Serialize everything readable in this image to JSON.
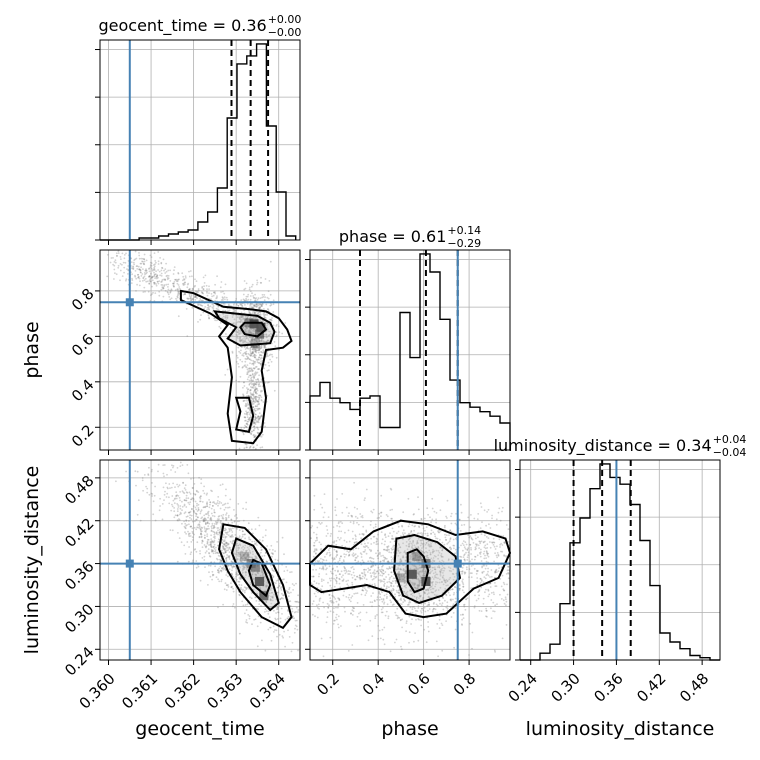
{
  "chart_data": {
    "type": "corner",
    "parameters": [
      "geocent_time",
      "phase",
      "luminosity_distance"
    ],
    "truth": {
      "geocent_time": 0.3605,
      "phase": 0.75,
      "luminosity_distance": 0.36
    },
    "colors": {
      "truth": "#4682b4",
      "hist": "#000000",
      "scatter": "#808080",
      "grid": "#b0b0b0"
    },
    "titles": [
      {
        "param": "geocent_time",
        "text": "geocent_time = 0.36",
        "plus": "+0.00",
        "minus": "−0.00"
      },
      {
        "param": "phase",
        "text": "phase = 0.61",
        "plus": "+0.14",
        "minus": "−0.29"
      },
      {
        "param": "luminosity_distance",
        "text": "luminosity_distance = 0.34",
        "plus": "+0.04",
        "minus": "−0.04"
      }
    ],
    "axes": {
      "geocent_time": {
        "range": [
          0.3598,
          0.3645
        ],
        "ticks": [
          0.36,
          0.361,
          0.362,
          0.363,
          0.364
        ],
        "tick_labels": [
          "0.360",
          "0.361",
          "0.362",
          "0.363",
          "0.364"
        ]
      },
      "phase": {
        "range": [
          0.1,
          0.98
        ],
        "ticks": [
          0.2,
          0.4,
          0.6,
          0.8
        ],
        "tick_labels": [
          "0.2",
          "0.4",
          "0.6",
          "0.8"
        ]
      },
      "luminosity_distance": {
        "range": [
          0.225,
          0.505
        ],
        "ticks": [
          0.24,
          0.3,
          0.36,
          0.42,
          0.48
        ],
        "tick_labels": [
          "0.24",
          "0.30",
          "0.36",
          "0.42",
          "0.48"
        ]
      }
    },
    "xlabels": [
      "geocent_time",
      "phase",
      "luminosity_distance"
    ],
    "ylabels": [
      "phase",
      "luminosity_distance"
    ],
    "quantiles": {
      "geocent_time": [
        0.36289,
        0.36334,
        0.36375
      ],
      "phase": [
        0.32,
        0.61,
        0.75
      ],
      "luminosity_distance": [
        0.3,
        0.34,
        0.38
      ]
    },
    "histograms": {
      "geocent_time": {
        "bin_edges": [
          0.3598,
          0.36003,
          0.36026,
          0.36049,
          0.36072,
          0.36095,
          0.36118,
          0.36141,
          0.36164,
          0.36187,
          0.3621,
          0.36233,
          0.36256,
          0.36279,
          0.36302,
          0.36325,
          0.36348,
          0.36371,
          0.36394,
          0.36417,
          0.3644
        ],
        "counts": [
          0,
          0,
          0,
          0,
          1,
          1,
          2,
          3,
          4,
          5,
          9,
          14,
          26,
          61,
          88,
          92,
          98,
          57,
          24,
          2
        ]
      },
      "phase": {
        "bin_edges": [
          0.1,
          0.144,
          0.188,
          0.232,
          0.276,
          0.32,
          0.364,
          0.408,
          0.452,
          0.496,
          0.54,
          0.584,
          0.628,
          0.672,
          0.716,
          0.76,
          0.804,
          0.848,
          0.892,
          0.936,
          0.98
        ],
        "counts": [
          24,
          30,
          23,
          21,
          18,
          23,
          24,
          10,
          10,
          61,
          41,
          87,
          79,
          58,
          31,
          21,
          19,
          17,
          15,
          12
        ]
      },
      "luminosity_distance": {
        "bin_edges": [
          0.225,
          0.239,
          0.253,
          0.267,
          0.281,
          0.295,
          0.309,
          0.323,
          0.337,
          0.351,
          0.365,
          0.379,
          0.393,
          0.407,
          0.421,
          0.435,
          0.449,
          0.463,
          0.477,
          0.491,
          0.505
        ],
        "counts": [
          0,
          0,
          3,
          7,
          25,
          52,
          63,
          76,
          87,
          81,
          78,
          69,
          53,
          33,
          12,
          8,
          5,
          2,
          1,
          0
        ]
      }
    },
    "contours_2d": [
      {
        "x": "geocent_time",
        "y": "phase",
        "peak": [
          0.36352,
          0.63
        ],
        "levels": [
          "outer",
          "middle",
          "inner"
        ]
      },
      {
        "x": "geocent_time",
        "y": "luminosity_distance",
        "peak": [
          0.36355,
          0.34
        ],
        "levels": [
          "outer",
          "middle",
          "inner"
        ]
      },
      {
        "x": "phase",
        "y": "luminosity_distance",
        "peak": [
          0.55,
          0.345
        ],
        "levels": [
          "outer",
          "middle",
          "inner"
        ]
      }
    ]
  }
}
